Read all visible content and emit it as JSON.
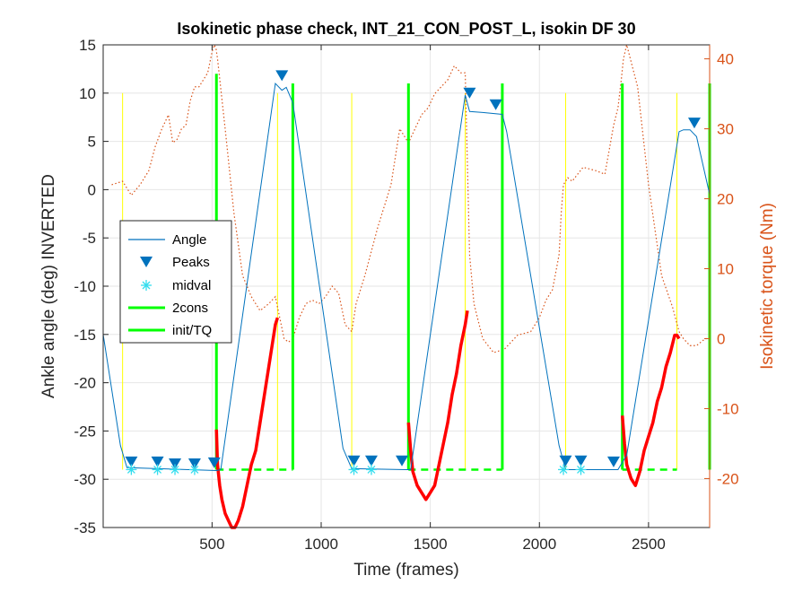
{
  "chart_data": {
    "type": "line",
    "title": "Isokinetic phase check, INT_21_CON_POST_L, isokin DF 30",
    "xlabel": "Time (frames)",
    "ylabel": "Ankle angle (deg) INVERTED",
    "y2label": "Isokinetic torque (Nm)",
    "xlim": [
      1,
      2780
    ],
    "ylim": [
      -35,
      15
    ],
    "y2lim": [
      -27,
      42
    ],
    "xticks": [
      500,
      1000,
      1500,
      2000,
      2500
    ],
    "yticks": [
      -35,
      -30,
      -25,
      -20,
      -15,
      -10,
      -5,
      0,
      5,
      10,
      15
    ],
    "y2ticks": [
      -20,
      -10,
      0,
      10,
      20,
      30,
      40
    ],
    "grid": true,
    "legend_position": "left-middle",
    "colors": {
      "angle": "#0072BD",
      "peaks": "#0072BD",
      "midval": "#33DDEE",
      "cons": "#00FF00",
      "torque_dotted": "#D95319",
      "torque_bold": "#FF0000",
      "phase_lines": "#FFFF00"
    },
    "legend": [
      "Angle",
      "Peaks",
      "midval",
      "2cons",
      "init/TQ"
    ],
    "series": [
      {
        "name": "Angle",
        "x": [
          1,
          80,
          110,
          520,
          540,
          790,
          820,
          840,
          870,
          1100,
          1140,
          1390,
          1410,
          1660,
          1680,
          1740,
          1830,
          1850,
          2090,
          2120,
          2360,
          2400,
          2640,
          2660,
          2690,
          2720,
          2780
        ],
        "y": [
          -15,
          -26.5,
          -28.8,
          -29.1,
          -29.0,
          11.0,
          10.3,
          10.6,
          9.0,
          -26.8,
          -28.9,
          -29.0,
          -29.0,
          9.8,
          8.1,
          8.0,
          7.8,
          6.0,
          -26.5,
          -29.0,
          -29.0,
          -27.5,
          6.0,
          6.2,
          6.2,
          5.5,
          -0.5
        ]
      },
      {
        "name": "Peaks",
        "x": [
          130,
          250,
          330,
          420,
          510,
          820,
          1150,
          1230,
          1370,
          1680,
          1800,
          2120,
          2190,
          2340,
          2710
        ],
        "y": [
          -28.2,
          -28.2,
          -28.4,
          -28.4,
          -28.3,
          11.8,
          -28.1,
          -28.1,
          -28.1,
          10.0,
          8.8,
          -28.1,
          -28.1,
          -28.2,
          6.9
        ]
      },
      {
        "name": "midval",
        "x": [
          130,
          250,
          330,
          420,
          1150,
          1230,
          2110,
          2190
        ],
        "y": [
          -29.0,
          -29.0,
          -29.0,
          -29.0,
          -29.0,
          -29.0,
          -29.0,
          -29.0
        ]
      }
    ],
    "phase_lines_x": [
      90,
      800,
      1140,
      1660,
      2120,
      2630
    ],
    "cons_lines": [
      {
        "x": 520,
        "y_top": 12.0,
        "y_bottom": -29.0
      },
      {
        "x": 870,
        "y_top": 11.0,
        "y_bottom": -29.0
      },
      {
        "x": 1400,
        "y_top": 11.0,
        "y_bottom": -29.0
      },
      {
        "x": 1830,
        "y_top": 11.0,
        "y_bottom": -29.0
      },
      {
        "x": 2380,
        "y_top": 11.0,
        "y_bottom": -29.0
      },
      {
        "x": 2780,
        "y_top": 11.0,
        "y_bottom": -29.0
      }
    ],
    "cons_dashed": [
      {
        "x_start": 520,
        "x_end": 870,
        "y": -29.0
      },
      {
        "x_start": 1400,
        "x_end": 1830,
        "y": -29.0
      },
      {
        "x_start": 2380,
        "x_end": 2630,
        "y": -29.0
      }
    ],
    "torque_dotted": {
      "x": [
        40,
        90,
        130,
        170,
        210,
        240,
        270,
        300,
        320,
        340,
        360,
        380,
        400,
        420,
        440,
        460,
        480,
        500,
        510,
        518,
        525,
        560,
        600,
        640,
        680,
        720,
        760,
        790,
        810,
        830,
        850,
        870,
        900,
        930,
        960,
        990,
        1020,
        1050,
        1080,
        1110,
        1140,
        1160,
        1200,
        1260,
        1320,
        1360,
        1400,
        1430,
        1460,
        1490,
        1520,
        1550,
        1580,
        1610,
        1640,
        1660,
        1680,
        1700,
        1740,
        1790,
        1840,
        1900,
        1960,
        2000,
        2030,
        2060,
        2090,
        2100,
        2110,
        2130,
        2150,
        2200,
        2260,
        2300,
        2320,
        2340,
        2360,
        2375,
        2385,
        2400,
        2450,
        2500,
        2560,
        2610,
        2640,
        2660,
        2690,
        2720,
        2760,
        2780
      ],
      "y": [
        22.0,
        22.5,
        20.5,
        22.0,
        24.0,
        27.5,
        30.0,
        32.0,
        28.0,
        28.5,
        30.0,
        30.5,
        34.0,
        36.0,
        36.0,
        37.0,
        38.0,
        41.0,
        42.0,
        41.5,
        40.0,
        30.0,
        18.0,
        9.0,
        6.0,
        4.0,
        5.0,
        6.0,
        3.0,
        0.0,
        -0.5,
        0.0,
        3.0,
        5.0,
        5.5,
        5.0,
        6.0,
        7.5,
        6.5,
        2.0,
        1.0,
        5.0,
        9.0,
        16.0,
        22.0,
        30.0,
        28.0,
        30.0,
        32.0,
        33.0,
        35.0,
        36.0,
        37.0,
        39.0,
        38.0,
        38.0,
        12.0,
        5.0,
        0.0,
        -2.0,
        -1.5,
        0.5,
        1.0,
        3.0,
        5.5,
        7.0,
        12.0,
        18.0,
        22.0,
        23.0,
        22.5,
        24.5,
        24.0,
        23.5,
        27.0,
        30.5,
        33.0,
        37.0,
        40.0,
        43.0,
        36.0,
        22.0,
        9.0,
        4.5,
        1.0,
        0.0,
        -1.0,
        -1.0,
        0.0,
        0.0
      ]
    },
    "torque_bold": [
      {
        "x": [
          520,
          525,
          535,
          545,
          560,
          575,
          590,
          605,
          620,
          640,
          660,
          680,
          700,
          720,
          740,
          760,
          775,
          790,
          800
        ],
        "y": [
          -13.0,
          -18.0,
          -21.0,
          -23.0,
          -25.0,
          -26.0,
          -27.0,
          -27.0,
          -26.0,
          -24.0,
          -21.0,
          -18.0,
          -16.0,
          -12.0,
          -8.0,
          -4.0,
          -1.0,
          2.0,
          3.0
        ]
      },
      {
        "x": [
          1400,
          1410,
          1420,
          1440,
          1460,
          1480,
          1500,
          1520,
          1540,
          1560,
          1580,
          1600,
          1620,
          1640,
          1660,
          1670
        ],
        "y": [
          -12.0,
          -16.0,
          -19.0,
          -21.0,
          -22.0,
          -23.0,
          -22.0,
          -21.0,
          -18.0,
          -15.0,
          -12.0,
          -8.0,
          -5.0,
          -1.0,
          2.0,
          4.0
        ]
      },
      {
        "x": [
          2380,
          2390,
          2400,
          2410,
          2420,
          2440,
          2460,
          2480,
          2500,
          2520,
          2540,
          2560,
          2580,
          2600,
          2620,
          2630,
          2640
        ],
        "y": [
          -11.0,
          -15.0,
          -18.0,
          -19.0,
          -20.0,
          -21.0,
          -19.0,
          -16.0,
          -14.0,
          -12.0,
          -9.0,
          -7.0,
          -4.0,
          -2.0,
          0.5,
          0.5,
          0.0
        ]
      }
    ]
  }
}
